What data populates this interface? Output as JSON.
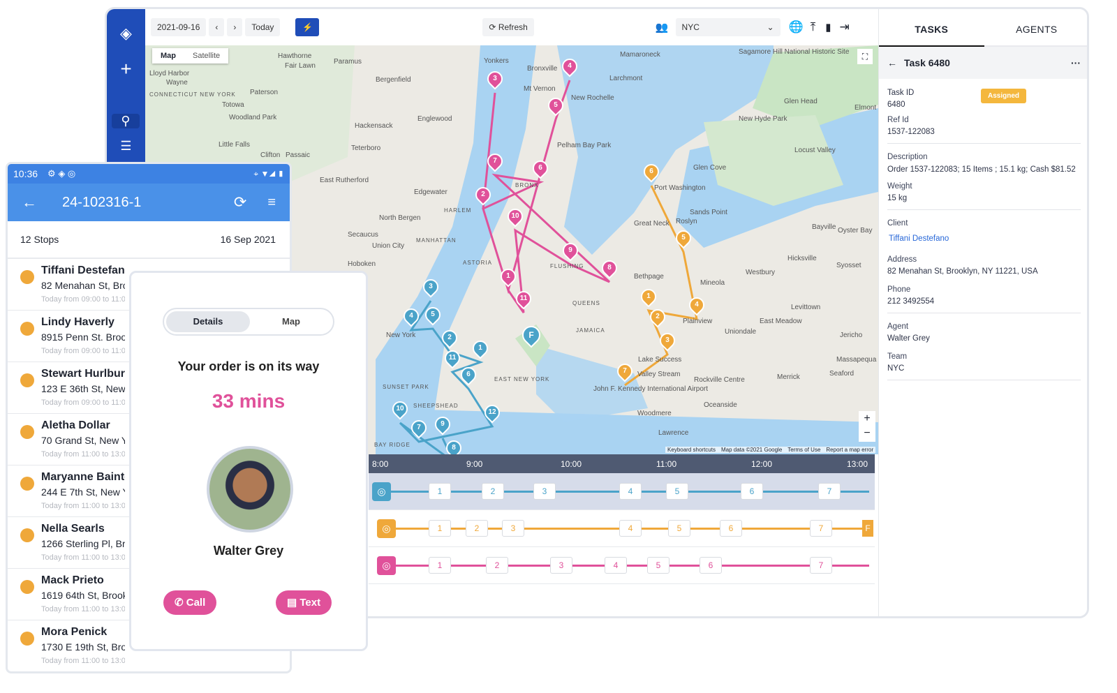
{
  "toolbar": {
    "date": "2021-09-16",
    "today": "Today",
    "refresh": "Refresh",
    "team": "NYC",
    "prev_icon": "chevron-left",
    "next_icon": "chevron-right",
    "bolt_icon": "lightning"
  },
  "map": {
    "type_map": "Map",
    "type_satellite": "Satellite",
    "attribution": [
      "Keyboard shortcuts",
      "Map data ©2021 Google",
      "Terms of Use",
      "Report a map error"
    ],
    "labels": [
      "Hawthorne",
      "Paramus",
      "Wayne",
      "Paterson",
      "Fair Lawn",
      "Totowa",
      "Woodland Park",
      "Bergenfield",
      "Hackensack",
      "Englewood",
      "Teterboro",
      "Clifton",
      "Passaic",
      "Little Falls",
      "East Rutherford",
      "Edgewater",
      "North Bergen",
      "Secaucus",
      "Union City",
      "Hoboken",
      "MANHATTAN",
      "HARLEM",
      "New York",
      "Yonkers",
      "Mt Vernon",
      "New Rochelle",
      "Bronxville",
      "Larchmont",
      "Mamaroneck",
      "Pelham Bay Park",
      "BRONX",
      "ASTORIA",
      "QUEENS",
      "FLUSHING",
      "JAMAICA",
      "EAST NEW YORK",
      "SUNSET PARK",
      "BAY RIDGE",
      "SHEEPSHEAD",
      "John F. Kennedy International Airport",
      "Valley Stream",
      "Woodmere",
      "Lawrence",
      "Oceanside",
      "Rockville Centre",
      "Uniondale",
      "East Meadow",
      "Merrick",
      "Seaford",
      "Massapequa",
      "Levittown",
      "Hicksville",
      "Westbury",
      "Mineola",
      "Roslyn",
      "Great Neck",
      "Port Washington",
      "Sands Point",
      "Glen Cove",
      "Glen Head",
      "Locust Valley",
      "Bayville",
      "Oyster Bay",
      "Syosset",
      "Jericho",
      "Plainview",
      "Bethpage",
      "Lake Success",
      "New Hyde Park",
      "Elmont",
      "Sagamore Hill National Historic Site",
      "Lloyd Harbor",
      "CONNECTICUT NEW YORK"
    ]
  },
  "routes": {
    "colors": {
      "pink": "#e0519a",
      "blue": "#4aa3c9",
      "orange": "#efa83a"
    },
    "pink": [
      "1",
      "2",
      "3",
      "4",
      "5",
      "6",
      "7",
      "8",
      "9",
      "10",
      "11"
    ],
    "blue": [
      "1",
      "2",
      "3",
      "4",
      "5",
      "6",
      "7",
      "8",
      "9",
      "10",
      "11",
      "12"
    ],
    "orange": [
      "1",
      "2",
      "3",
      "4",
      "5",
      "6",
      "7"
    ],
    "finish": "F"
  },
  "timeline": {
    "hours": [
      "8:00",
      "9:00",
      "10:00",
      "11:00",
      "12:00",
      "13:00"
    ],
    "rows": [
      {
        "color": "#4aa3c9",
        "stops": [
          "1",
          "2",
          "3",
          "4",
          "5",
          "6",
          "7"
        ]
      },
      {
        "color": "#efa83a",
        "stops": [
          "1",
          "2",
          "3",
          "4",
          "5",
          "6",
          "7"
        ],
        "end": "F"
      },
      {
        "color": "#e0519a",
        "stops": [
          "1",
          "2",
          "3",
          "4",
          "5",
          "6",
          "7"
        ]
      }
    ]
  },
  "panel": {
    "tabs": [
      "TASKS",
      "AGENTS"
    ],
    "title": "Task 6480",
    "status": "Assigned",
    "status_color": "#f4b73d",
    "task_id_label": "Task ID",
    "task_id": "6480",
    "ref_label": "Ref Id",
    "ref": "1537-122083",
    "desc_label": "Description",
    "desc": "Order 1537-122083; 15 Items ; 15.1 kg;   Cash $81.52",
    "weight_label": "Weight",
    "weight": "15 kg",
    "client_label": "Client",
    "client": "Tiffani Destefano",
    "address_label": "Address",
    "address": "82 Menahan St, Brooklyn, NY 11221, USA",
    "phone_label": "Phone",
    "phone": "212 3492554",
    "agent_label": "Agent",
    "agent": "Walter Grey",
    "team_label": "Team",
    "team": "NYC"
  },
  "phone": {
    "time": "10:36",
    "title": "24-102316-1",
    "stops": "12 Stops",
    "date": "16 Sep 2021",
    "items": [
      {
        "name": "Tiffani Destefano",
        "addr": "82 Menahan St, Brooklyn",
        "time": "Today from 09:00 to 11:00"
      },
      {
        "name": "Lindy Haverly",
        "addr": "8915 Penn St. Brooklyn",
        "time": "Today from 09:00 to 11:00"
      },
      {
        "name": "Stewart Hurlburt",
        "addr": "123 E 36th St, New York",
        "time": "Today from 09:00 to 11:00"
      },
      {
        "name": "Aletha Dollar",
        "addr": "70 Grand St, New York",
        "time": "Today from 11:00 to 13:00"
      },
      {
        "name": "Maryanne Bainter",
        "addr": "244 E 7th St, New York",
        "time": "Today from 11:00 to 13:00"
      },
      {
        "name": "Nella Searls",
        "addr": "1266 Sterling Pl, Brooklyn",
        "time": "Today from 11:00 to 13:00"
      },
      {
        "name": "Mack Prieto",
        "addr": "1619 64th St, Brooklyn",
        "time": "Today from 11:00 to 13:00"
      },
      {
        "name": "Mora Penick",
        "addr": "1730 E 19th St, Brooklyn",
        "time": "Today from 11:00 to 13:00"
      }
    ]
  },
  "card": {
    "tab_details": "Details",
    "tab_map": "Map",
    "message": "Your order is on its way",
    "eta": "33 mins",
    "agent": "Walter Grey",
    "call": "Call",
    "text": "Text"
  }
}
